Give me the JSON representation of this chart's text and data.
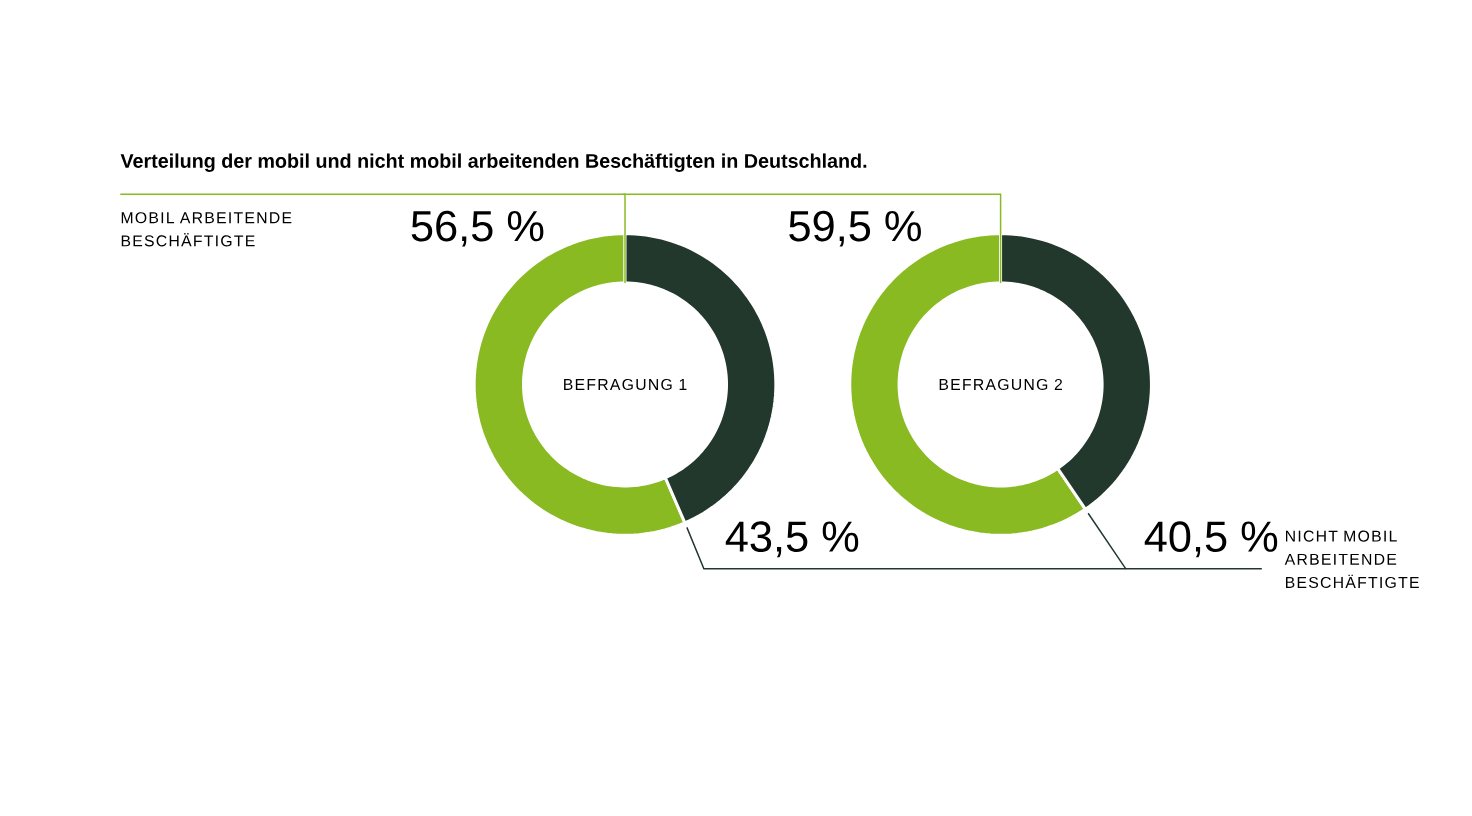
{
  "chart_data": [
    {
      "type": "donut",
      "title": "Verteilung der mobil und nicht mobil arbeitenden Beschäftigten in Deutschland.",
      "annotations": [
        "BEFRAGUNG 1"
      ],
      "categories": [
        "MOBIL ARBEITENDE BESCHÄFTIGTE",
        null
      ],
      "values": [
        56.5,
        43.5
      ],
      "colors": [
        "#8aba22",
        "#22382c"
      ],
      "value_labels": [
        "56,5 %",
        "43,5 %"
      ]
    },
    {
      "type": "donut",
      "annotations": [
        "BEFRAGUNG 2"
      ],
      "categories": [
        null,
        "NICHT MOBIL ARBEITENDE BESCHÄFTIGTE"
      ],
      "values": [
        59.5,
        40.5
      ],
      "colors": [
        "#8aba22",
        "#22382c"
      ],
      "value_labels": [
        "59,5 %",
        "40,5 %"
      ]
    }
  ]
}
